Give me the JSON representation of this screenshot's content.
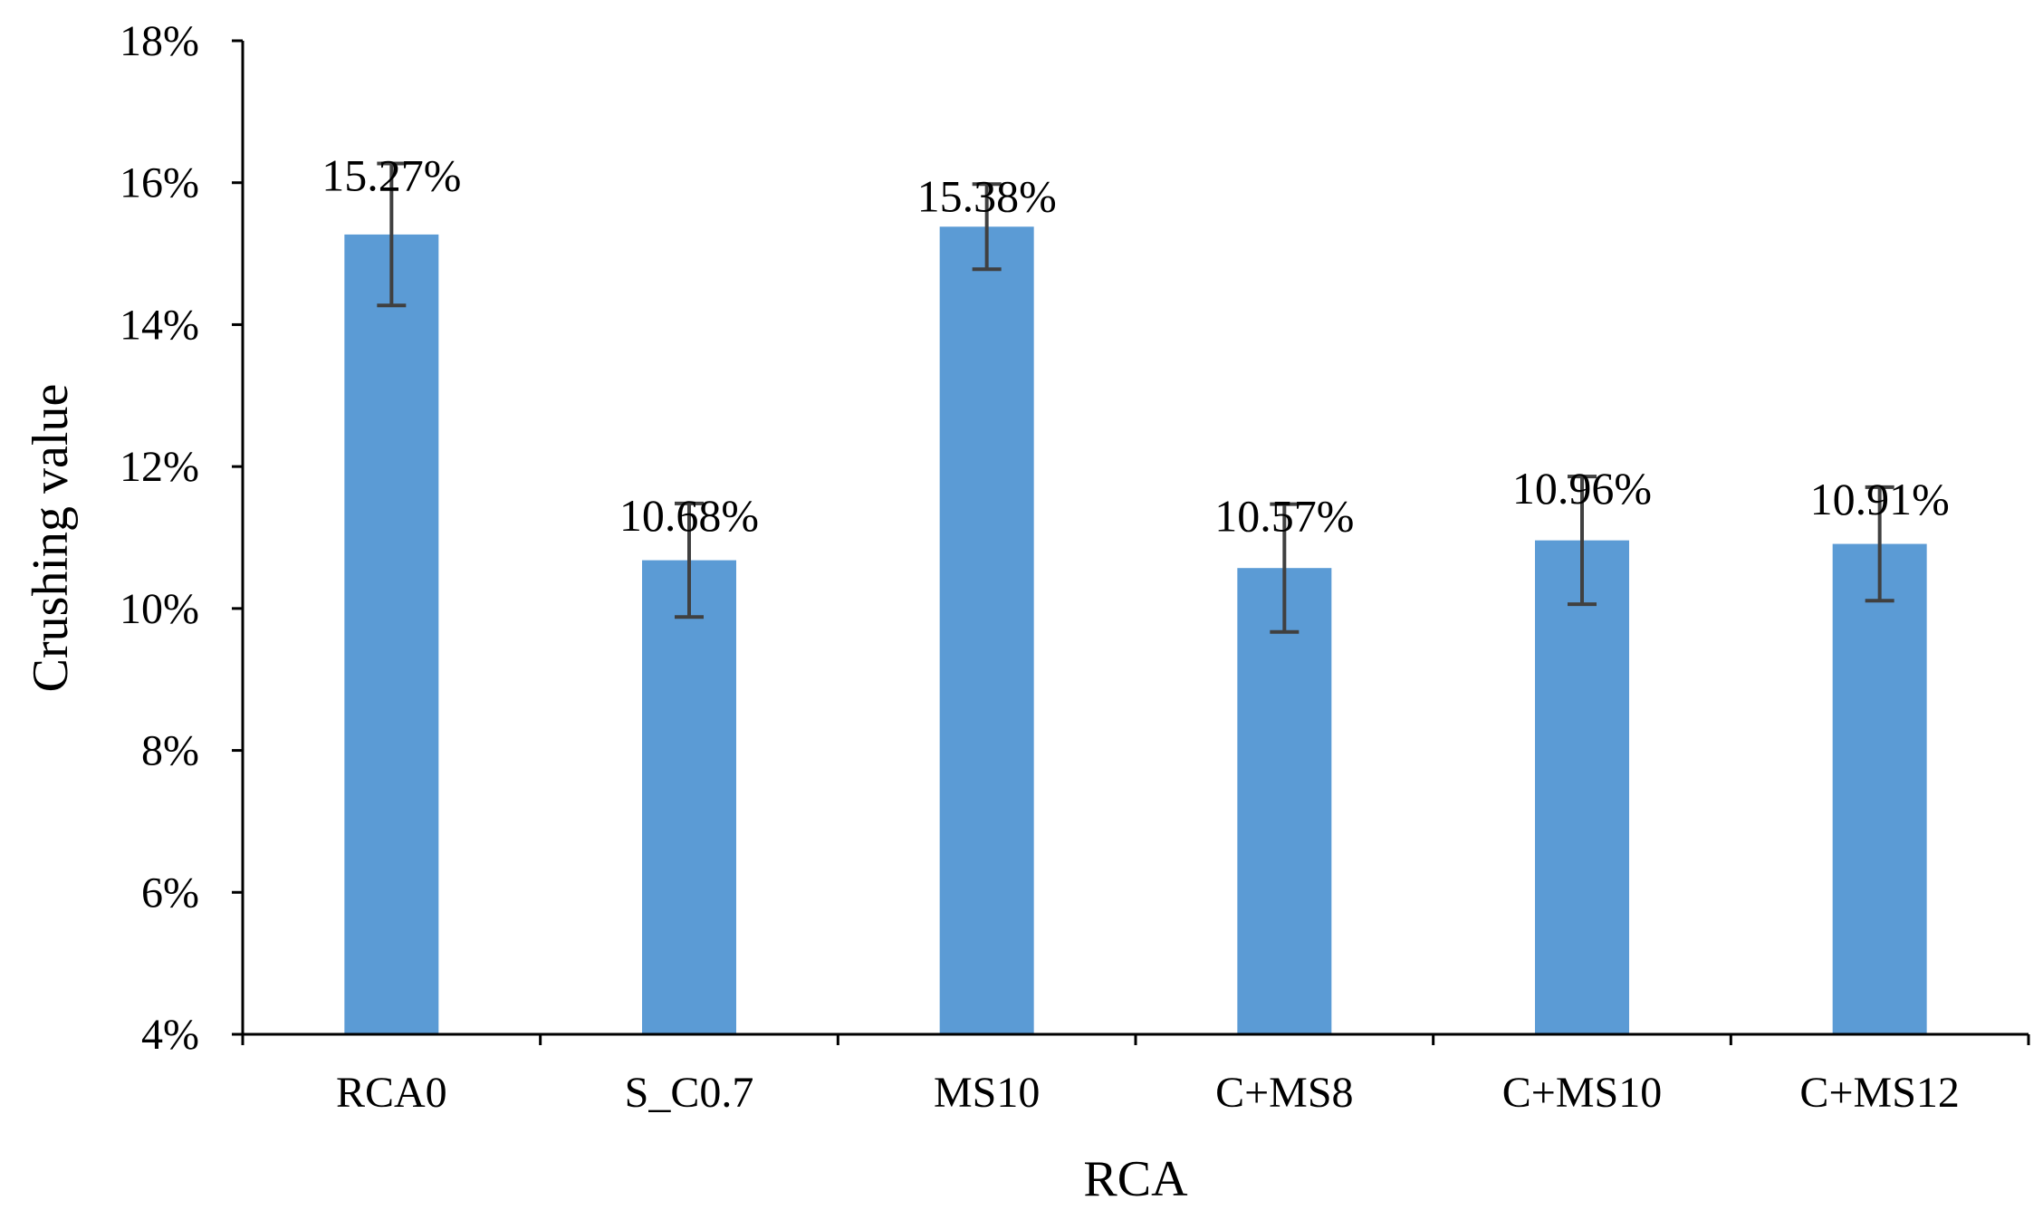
{
  "chart_data": {
    "type": "bar",
    "title": "",
    "xlabel": "RCA",
    "ylabel": "Crushing value",
    "categories": [
      "RCA0",
      "S_C0.7",
      "MS10",
      "C+MS8",
      "C+MS10",
      "C+MS12"
    ],
    "values": [
      15.27,
      10.68,
      15.38,
      10.57,
      10.96,
      10.91
    ],
    "data_labels": [
      "15.27%",
      "10.68%",
      "15.38%",
      "10.57%",
      "10.96%",
      "10.91%"
    ],
    "error": [
      1.0,
      0.8,
      0.6,
      0.9,
      0.9,
      0.8
    ],
    "ylim": [
      4,
      18
    ],
    "yticks": [
      4,
      6,
      8,
      10,
      12,
      14,
      16,
      18
    ],
    "ytick_labels": [
      "4%",
      "6%",
      "8%",
      "10%",
      "12%",
      "14%",
      "16%",
      "18%"
    ],
    "grid": false,
    "legend": "none",
    "bar_color": "#5B9BD5",
    "error_color": "#404040"
  }
}
